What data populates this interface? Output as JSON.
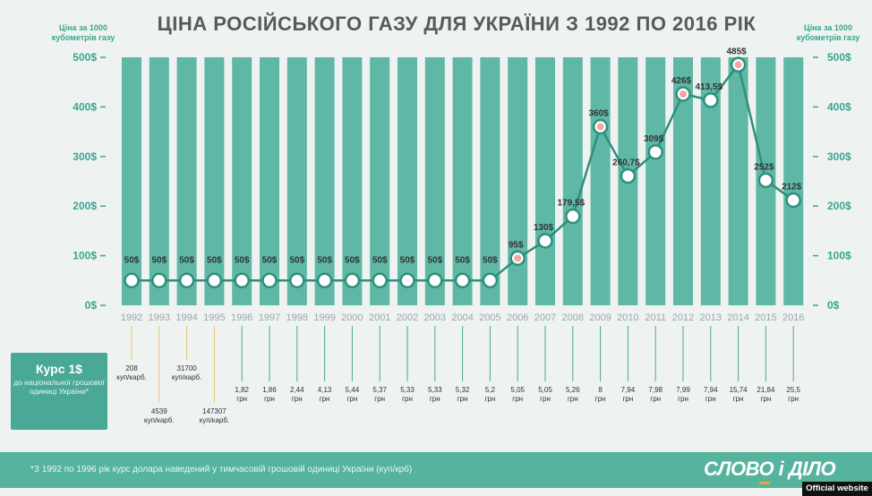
{
  "title": "ЦІНА РОСІЙСЬКОГО ГАЗУ ДЛЯ УКРАЇНИ З 1992 ПО 2016 РІК",
  "unit_left": "Ціна за 1000 кубометрів газу",
  "unit_right": "Ціна за 1000 кубометрів газу",
  "rate_panel": {
    "title": "Курс 1$",
    "subtitle": "до національної грошової одиниці України*"
  },
  "footnote": "*З 1992 по 1996 рік курс долара наведений у тимчасовій грошовій одиниці України (куп/крб)",
  "logo": "СЛОВО і ДІЛО",
  "badge": "Official website",
  "colors": {
    "bar": "#5fb8a5",
    "line": "#2f8f7c",
    "accent_marker": "#f2a7a3",
    "axis_text": "#3aa58e"
  },
  "chart_data": {
    "type": "bar",
    "title": "ЦІНА РОСІЙСЬКОГО ГАЗУ ДЛЯ УКРАЇНИ З 1992 ПО 2016 РІК",
    "ylabel": "Ціна за 1000 кубометрів газу",
    "ylim": [
      0,
      500
    ],
    "yticks": [
      "0$",
      "100$",
      "200$",
      "300$",
      "400$",
      "500$"
    ],
    "grid": false,
    "categories": [
      "1992",
      "1993",
      "1994",
      "1995",
      "1996",
      "1997",
      "1998",
      "1999",
      "2000",
      "2001",
      "2002",
      "2003",
      "2004",
      "2005",
      "2006",
      "2007",
      "2008",
      "2009",
      "2010",
      "2011",
      "2012",
      "2013",
      "2014",
      "2015",
      "2016"
    ],
    "series": [
      {
        "type": "line",
        "values": [
          50,
          50,
          50,
          50,
          50,
          50,
          50,
          50,
          50,
          50,
          50,
          50,
          50,
          50,
          95,
          130,
          179.5,
          360,
          260.7,
          309,
          426,
          413.5,
          485,
          252,
          212
        ],
        "labels": [
          "50$",
          "50$",
          "50$",
          "50$",
          "50$",
          "50$",
          "50$",
          "50$",
          "50$",
          "50$",
          "50$",
          "50$",
          "50$",
          "50$",
          "95$",
          "130$",
          "179,5$",
          "360$",
          "260,7$",
          "309$",
          "426$",
          "413,5$",
          "485$",
          "252$",
          "212$"
        ],
        "highlighted": [
          14,
          17,
          20,
          22
        ]
      }
    ],
    "exchange_rate": [
      [
        "208",
        "куп/карб."
      ],
      [
        "4539",
        "куп/карб."
      ],
      [
        "31700",
        "куп/карб."
      ],
      [
        "147307",
        "куп/карб."
      ],
      [
        "1,82",
        "грн"
      ],
      [
        "1,86",
        "грн"
      ],
      [
        "2,44",
        "грн"
      ],
      [
        "4,13",
        "грн"
      ],
      [
        "5,44",
        "грн"
      ],
      [
        "5,37",
        "грн"
      ],
      [
        "5,33",
        "грн"
      ],
      [
        "5,33",
        "грн"
      ],
      [
        "5,32",
        "грн"
      ],
      [
        "5,2",
        "грн"
      ],
      [
        "5,05",
        "грн"
      ],
      [
        "5,05",
        "грн"
      ],
      [
        "5,26",
        "грн"
      ],
      [
        "8",
        "грн"
      ],
      [
        "7,94",
        "грн"
      ],
      [
        "7,98",
        "грн"
      ],
      [
        "7,99",
        "грн"
      ],
      [
        "7,94",
        "грн"
      ],
      [
        "15,74",
        "грн"
      ],
      [
        "21,84",
        "грн"
      ],
      [
        "25,5",
        "грн"
      ]
    ]
  }
}
